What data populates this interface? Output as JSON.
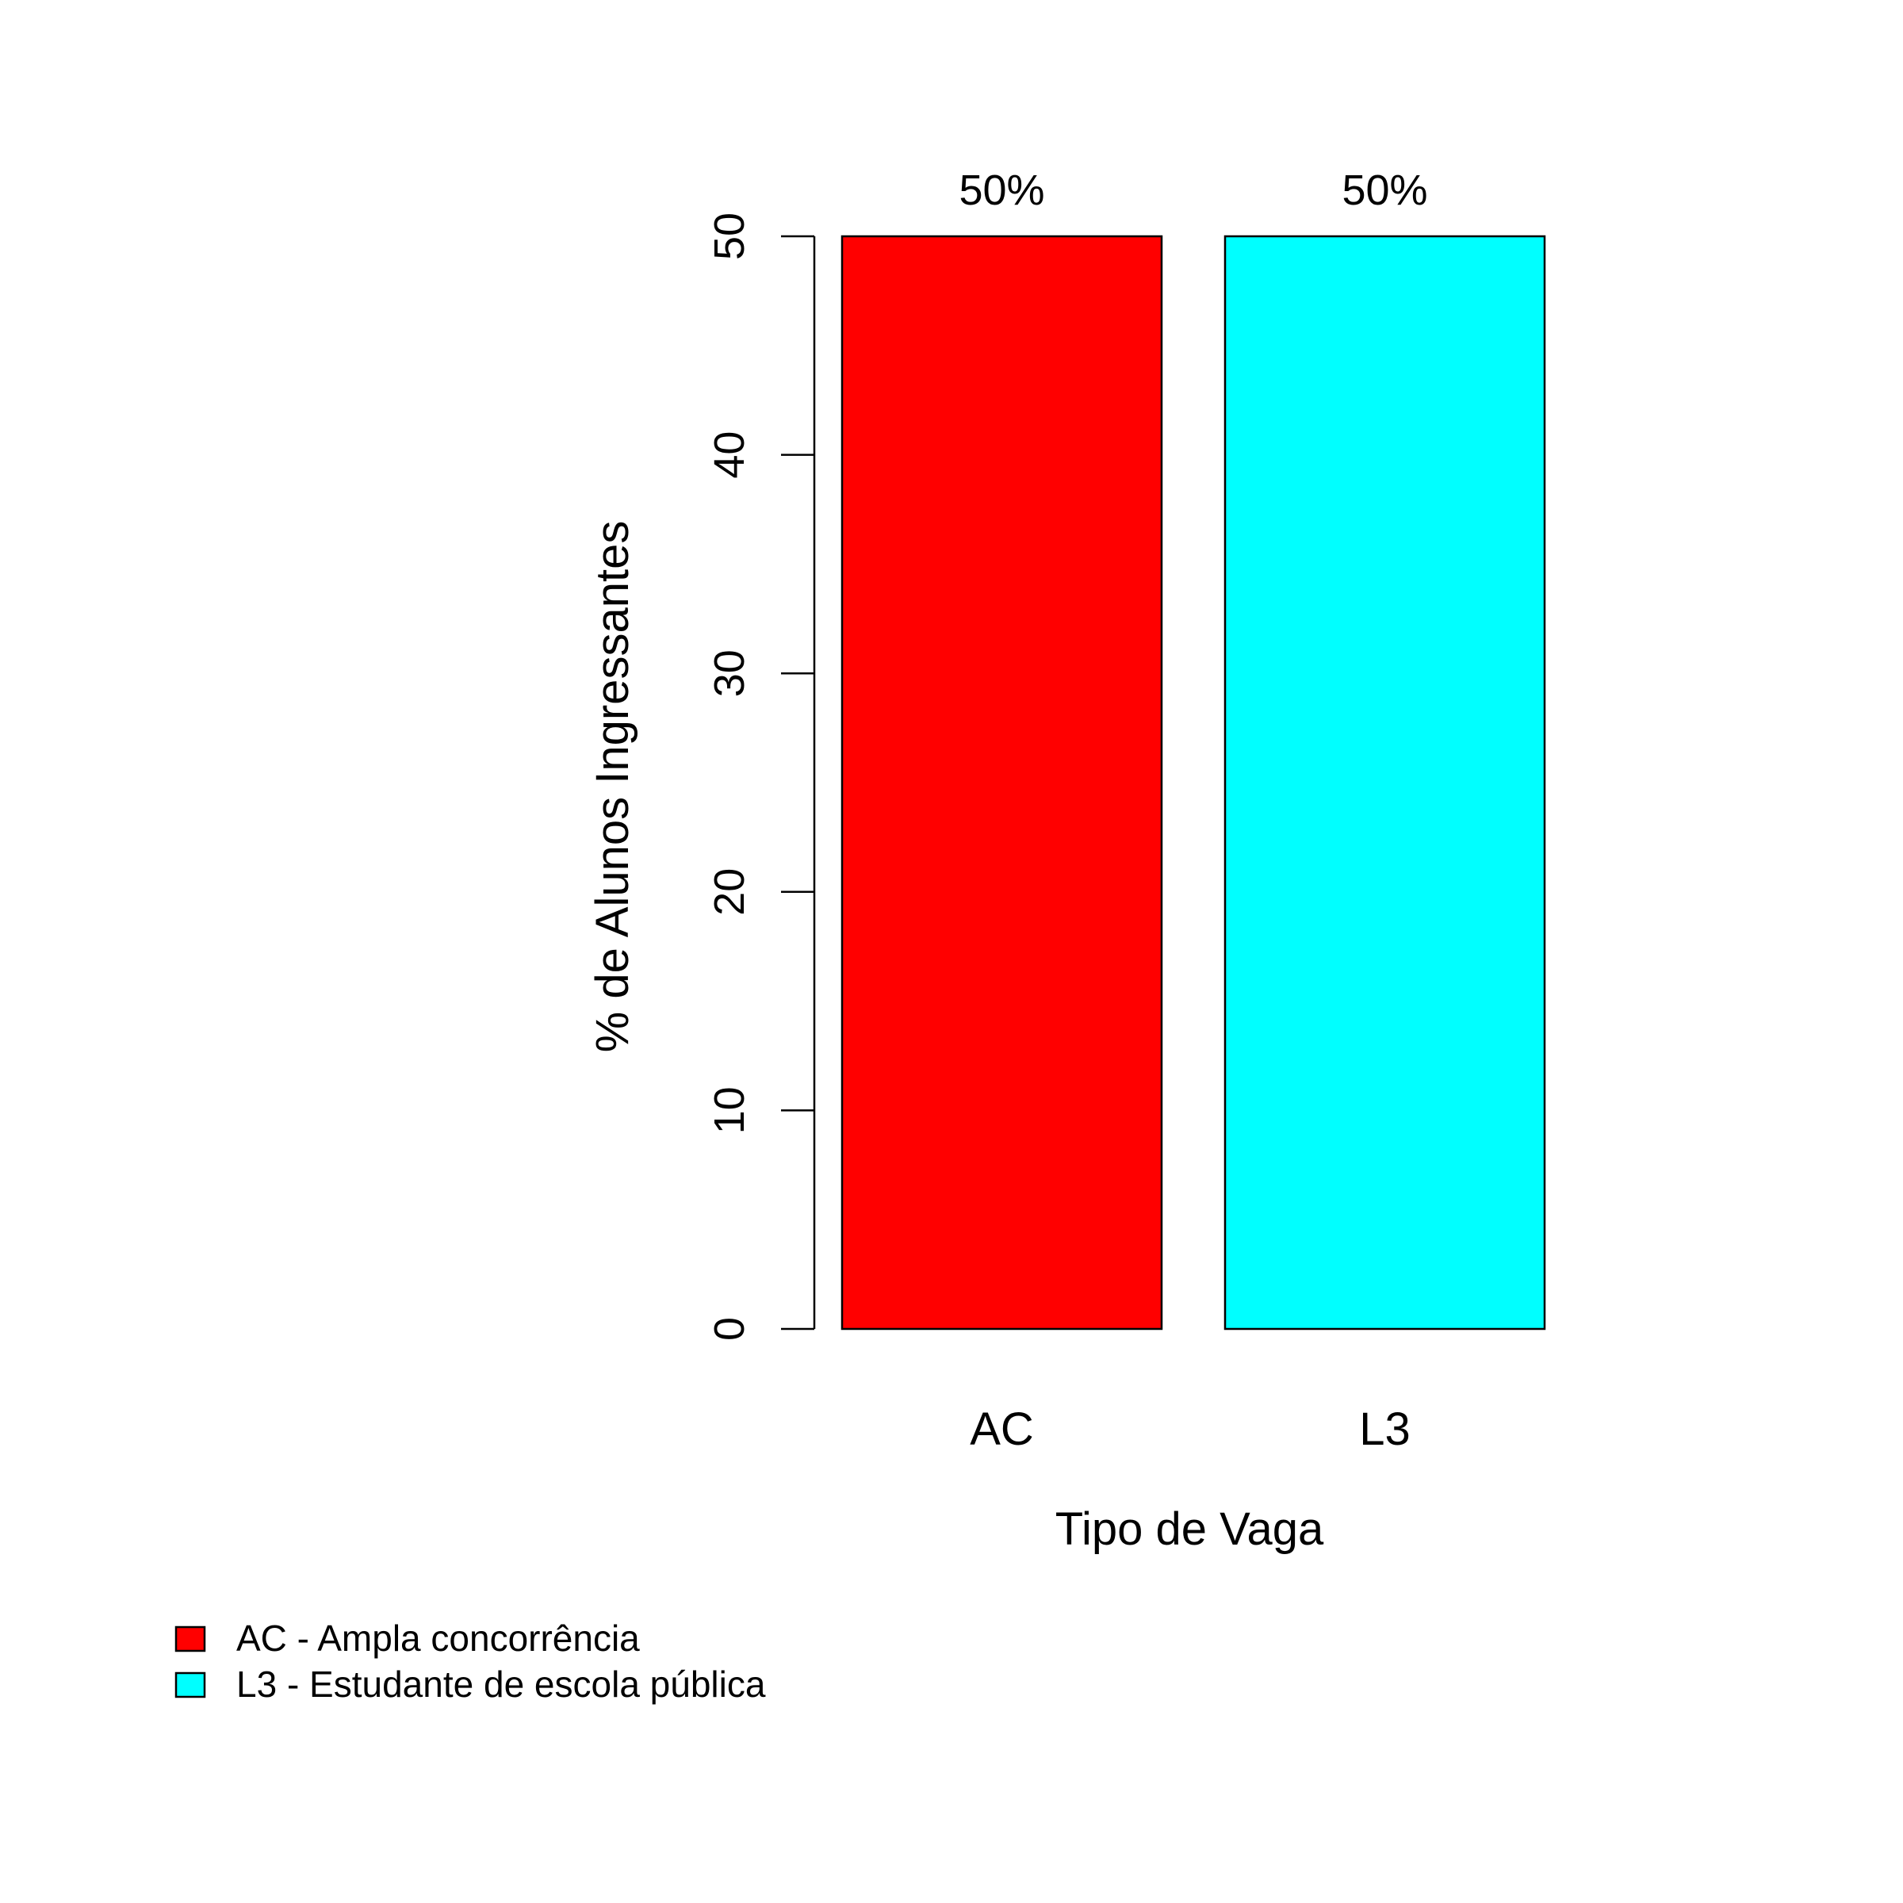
{
  "chart_data": {
    "type": "bar",
    "categories": [
      "AC",
      "L3"
    ],
    "values": [
      50,
      50
    ],
    "data_labels": [
      "50%",
      "50%"
    ],
    "colors": [
      "#ff0000",
      "#00ffff"
    ],
    "xlabel": "Tipo de Vaga",
    "ylabel": "% de Alunos Ingressantes",
    "ylim": [
      0,
      50
    ],
    "yticks": [
      0,
      10,
      20,
      30,
      40,
      50
    ],
    "grid": false,
    "legend": {
      "position": "bottom-left",
      "entries": [
        {
          "label": "AC - Ampla concorrência",
          "color": "#ff0000"
        },
        {
          "label": "L3 - Estudante de escola pública",
          "color": "#00ffff"
        }
      ]
    }
  }
}
